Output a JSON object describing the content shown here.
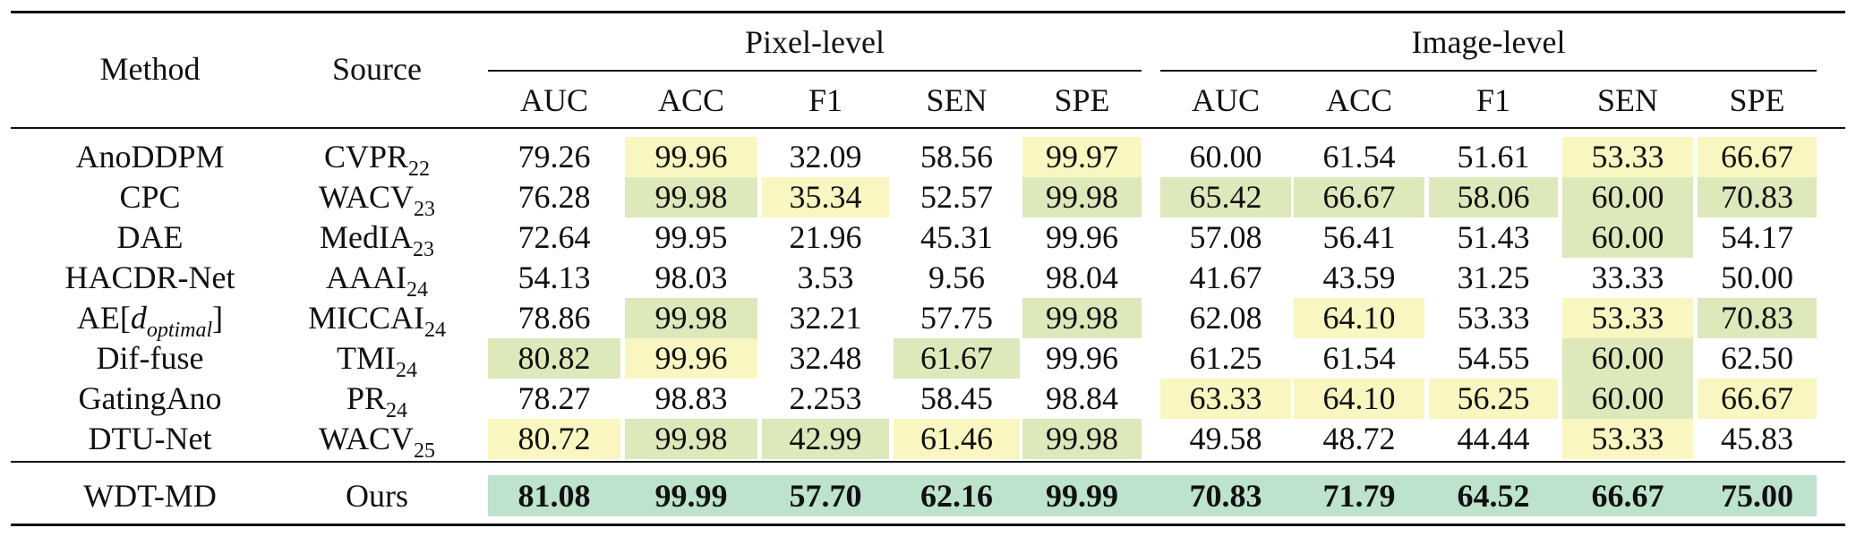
{
  "colors": {
    "best": "#bde3cc",
    "second": "#dde8bb",
    "third": "#f9f6c1"
  },
  "header": {
    "method": "Method",
    "source": "Source",
    "group_pixel": "Pixel-level",
    "group_image": "Image-level",
    "metrics": [
      "AUC",
      "ACC",
      "F1",
      "SEN",
      "SPE",
      "AUC",
      "ACC",
      "F1",
      "SEN",
      "SPE"
    ]
  },
  "rows": [
    {
      "method": "AnoDDPM",
      "source_base": "CVPR",
      "source_sub": "22",
      "values": [
        "79.26",
        "99.96",
        "32.09",
        "58.56",
        "99.97",
        "60.00",
        "61.54",
        "51.61",
        "53.33",
        "66.67"
      ],
      "highlight": [
        "",
        "third",
        "",
        "",
        "third",
        "",
        "",
        "",
        "third",
        "third"
      ]
    },
    {
      "method": "CPC",
      "source_base": "WACV",
      "source_sub": "23",
      "values": [
        "76.28",
        "99.98",
        "35.34",
        "52.57",
        "99.98",
        "65.42",
        "66.67",
        "58.06",
        "60.00",
        "70.83"
      ],
      "highlight": [
        "",
        "second",
        "third",
        "",
        "second",
        "second",
        "second",
        "second",
        "second",
        "second"
      ]
    },
    {
      "method": "DAE",
      "source_base": "MedIA",
      "source_sub": "23",
      "values": [
        "72.64",
        "99.95",
        "21.96",
        "45.31",
        "99.96",
        "57.08",
        "56.41",
        "51.43",
        "60.00",
        "54.17"
      ],
      "highlight": [
        "",
        "",
        "",
        "",
        "",
        "",
        "",
        "",
        "second",
        ""
      ]
    },
    {
      "method": "HACDR-Net",
      "source_base": "AAAI",
      "source_sub": "24",
      "values": [
        "54.13",
        "98.03",
        "3.53",
        "9.56",
        "98.04",
        "41.67",
        "43.59",
        "31.25",
        "33.33",
        "50.00"
      ],
      "highlight": [
        "",
        "",
        "",
        "",
        "",
        "",
        "",
        "",
        "",
        ""
      ]
    },
    {
      "method_base": "AE[",
      "method_math": "d",
      "method_sub": "optimal",
      "method_end": "]",
      "source_base": "MICCAI",
      "source_sub": "24",
      "values": [
        "78.86",
        "99.98",
        "32.21",
        "57.75",
        "99.98",
        "62.08",
        "64.10",
        "53.33",
        "53.33",
        "70.83"
      ],
      "highlight": [
        "",
        "second",
        "",
        "",
        "second",
        "",
        "third",
        "",
        "third",
        "second"
      ]
    },
    {
      "method": "Dif-fuse",
      "source_base": "TMI",
      "source_sub": "24",
      "values": [
        "80.82",
        "99.96",
        "32.48",
        "61.67",
        "99.96",
        "61.25",
        "61.54",
        "54.55",
        "60.00",
        "62.50"
      ],
      "highlight": [
        "second",
        "third",
        "",
        "second",
        "",
        "",
        "",
        "",
        "second",
        ""
      ]
    },
    {
      "method": "GatingAno",
      "source_base": "PR",
      "source_sub": "24",
      "values": [
        "78.27",
        "98.83",
        "2.253",
        "58.45",
        "98.84",
        "63.33",
        "64.10",
        "56.25",
        "60.00",
        "66.67"
      ],
      "highlight": [
        "",
        "",
        "",
        "",
        "",
        "third",
        "third",
        "third",
        "second",
        "third"
      ]
    },
    {
      "method": "DTU-Net",
      "source_base": "WACV",
      "source_sub": "25",
      "values": [
        "80.72",
        "99.98",
        "42.99",
        "61.46",
        "99.98",
        "49.58",
        "48.72",
        "44.44",
        "53.33",
        "45.83"
      ],
      "highlight": [
        "third",
        "second",
        "second",
        "third",
        "second",
        "",
        "",
        "",
        "third",
        ""
      ]
    }
  ],
  "ours": {
    "method": "WDT-MD",
    "source": "Ours",
    "values": [
      "81.08",
      "99.99",
      "57.70",
      "62.16",
      "99.99",
      "70.83",
      "71.79",
      "64.52",
      "66.67",
      "75.00"
    ],
    "highlight": "best"
  }
}
